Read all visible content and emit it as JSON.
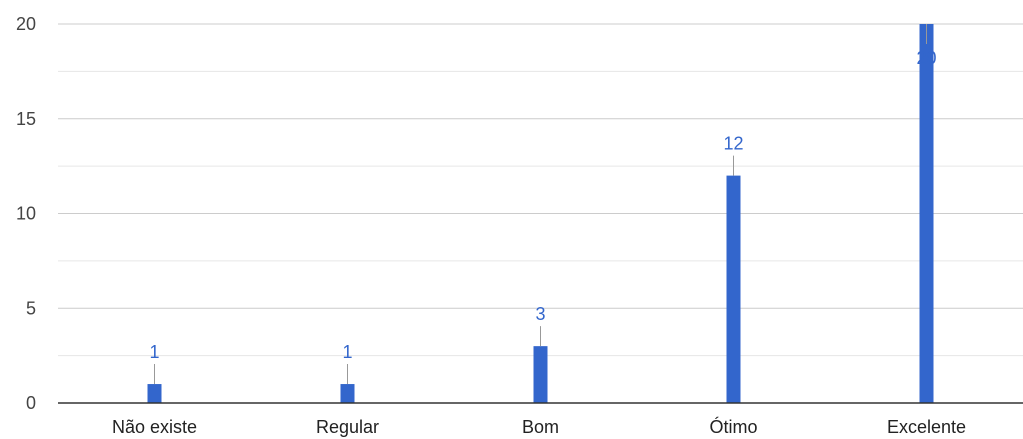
{
  "chart_data": {
    "type": "bar",
    "categories": [
      "Não existe",
      "Regular",
      "Bom",
      "Ótimo",
      "Excelente"
    ],
    "values": [
      1,
      1,
      3,
      12,
      20
    ],
    "data_labels": [
      "1",
      "1",
      "3",
      "12",
      "20"
    ],
    "ylim": [
      0,
      20
    ],
    "yticks": [
      "0",
      "5",
      "10",
      "15",
      "20"
    ],
    "yticks_values": [
      0,
      5,
      10,
      15,
      20
    ],
    "minor_gridlines": [
      2.5,
      7.5,
      12.5,
      17.5
    ],
    "grid": true,
    "bar_color": "#3366cc",
    "label_color": "#3366cc",
    "gridline_color": "#cccccc",
    "minor_gridline_color": "#e6e6e6",
    "axis_color": "#333333"
  }
}
